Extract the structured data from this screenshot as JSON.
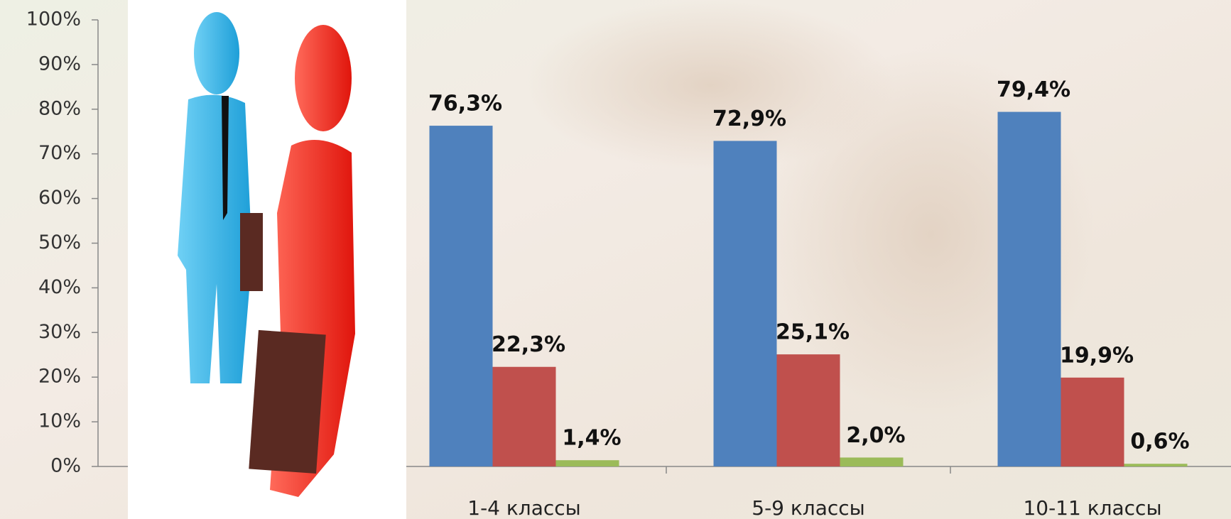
{
  "chart_data": {
    "type": "bar",
    "categories": [
      "1-4 классы",
      "5-9 классы",
      "10-11 классы"
    ],
    "series": [
      {
        "color": "#4f81bd",
        "values": [
          76.3,
          72.9,
          79.4
        ],
        "value_labels": [
          "76,3%",
          "72,9%",
          "79,4%"
        ]
      },
      {
        "color": "#c0504d",
        "values": [
          22.3,
          25.1,
          19.9
        ],
        "value_labels": [
          "22,3%",
          "25,1%",
          "19,9%"
        ]
      },
      {
        "color": "#9bbb59",
        "values": [
          1.4,
          2.0,
          0.6
        ],
        "value_labels": [
          "1,4%",
          "2,0%",
          "0,6%"
        ]
      }
    ],
    "ylim": [
      0,
      100
    ],
    "yticks": [
      {
        "value": 0,
        "label": "0%"
      },
      {
        "value": 10,
        "label": "10%"
      },
      {
        "value": 20,
        "label": "20%"
      },
      {
        "value": 30,
        "label": "30%"
      },
      {
        "value": 40,
        "label": "40%"
      },
      {
        "value": 50,
        "label": "50%"
      },
      {
        "value": 60,
        "label": "60%"
      },
      {
        "value": 70,
        "label": "70%"
      },
      {
        "value": 80,
        "label": "80%"
      },
      {
        "value": 90,
        "label": "90%"
      },
      {
        "value": 100,
        "label": "100%"
      }
    ]
  }
}
